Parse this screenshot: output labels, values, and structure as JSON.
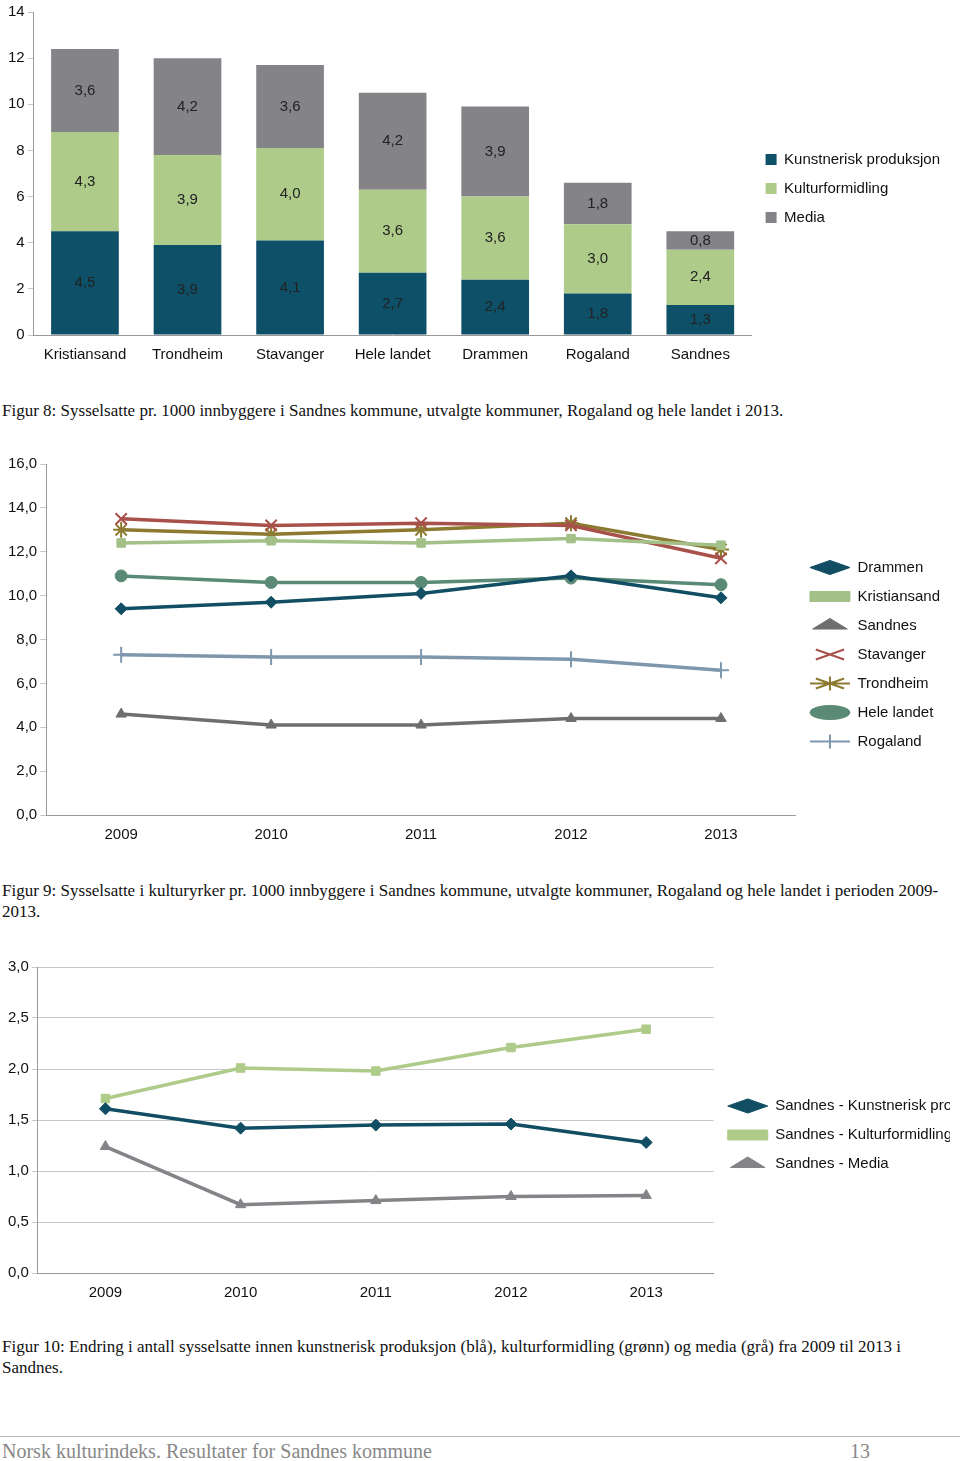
{
  "chart_data": [
    {
      "type": "bar",
      "stacked": true,
      "data_labels": true,
      "grid": false,
      "legend": "right",
      "categories": [
        "Kristiansand",
        "Trondheim",
        "Stavanger",
        "Hele landet",
        "Drammen",
        "Rogaland",
        "Sandnes"
      ],
      "ylim": [
        0,
        14
      ],
      "yticks": [
        0,
        2,
        4,
        6,
        8,
        10,
        12,
        14
      ],
      "series": [
        {
          "name": "Kunstnerisk produksjon",
          "color": "#0d5068",
          "values": [
            4.5,
            3.9,
            4.1,
            2.7,
            2.4,
            1.8,
            1.3
          ],
          "value_labels": [
            "4,5",
            "3,9",
            "4,1",
            "2,7",
            "2,4",
            "1,8",
            "1,3"
          ]
        },
        {
          "name": "Kulturformidling",
          "color": "#aecb8a",
          "values": [
            4.3,
            3.9,
            4.0,
            3.6,
            3.6,
            3.0,
            2.4
          ],
          "value_labels": [
            "4,3",
            "3,9",
            "4,0",
            "3,6",
            "3,6",
            "3,0",
            "2,4"
          ]
        },
        {
          "name": "Media",
          "color": "#848388",
          "values": [
            3.6,
            4.2,
            3.6,
            4.2,
            3.9,
            1.8,
            0.8
          ],
          "value_labels": [
            "3,6",
            "4,2",
            "3,6",
            "4,2",
            "3,9",
            "1,8",
            "0,8"
          ]
        }
      ]
    },
    {
      "type": "line",
      "grid": false,
      "legend": "right",
      "categories": [
        "2009",
        "2010",
        "2011",
        "2012",
        "2013"
      ],
      "ylim": [
        0,
        16
      ],
      "yticks": [
        {
          "value": 0,
          "label": "0,0"
        },
        {
          "value": 2,
          "label": "2,0"
        },
        {
          "value": 4,
          "label": "4,0"
        },
        {
          "value": 6,
          "label": "6,0"
        },
        {
          "value": 8,
          "label": "8,0"
        },
        {
          "value": 10,
          "label": "10,0"
        },
        {
          "value": 12,
          "label": "12,0"
        },
        {
          "value": 14,
          "label": "14,0"
        },
        {
          "value": 16,
          "label": "16,0"
        }
      ],
      "series": [
        {
          "name": "Drammen",
          "color": "#114e63",
          "marker": "diamond",
          "values": [
            9.4,
            9.7,
            10.1,
            10.9,
            9.9
          ]
        },
        {
          "name": "Kristiansand",
          "color": "#a2c088",
          "marker": "square",
          "values": [
            12.4,
            12.5,
            12.4,
            12.6,
            12.3
          ]
        },
        {
          "name": "Sandnes",
          "color": "#6e6e70",
          "marker": "triangle",
          "values": [
            4.6,
            4.1,
            4.1,
            4.4,
            4.4
          ]
        },
        {
          "name": "Stavanger",
          "color": "#a8504a",
          "marker": "x",
          "values": [
            13.5,
            13.2,
            13.3,
            13.2,
            11.7
          ]
        },
        {
          "name": "Trondheim",
          "color": "#8c7a30",
          "marker": "star",
          "values": [
            13.0,
            12.8,
            13.0,
            13.3,
            12.1
          ]
        },
        {
          "name": "Hele landet",
          "color": "#5a8a75",
          "marker": "circle",
          "values": [
            10.9,
            10.6,
            10.6,
            10.8,
            10.5
          ]
        },
        {
          "name": "Rogaland",
          "color": "#7e97ad",
          "marker": "plus",
          "values": [
            7.3,
            7.2,
            7.2,
            7.1,
            6.6
          ]
        }
      ]
    },
    {
      "type": "line",
      "grid": true,
      "legend": "right",
      "categories": [
        "2009",
        "2010",
        "2011",
        "2012",
        "2013"
      ],
      "ylim": [
        0,
        3
      ],
      "yticks": [
        {
          "value": 0,
          "label": "0,0"
        },
        {
          "value": 0.5,
          "label": "0,5"
        },
        {
          "value": 1,
          "label": "1,0"
        },
        {
          "value": 1.5,
          "label": "1,5"
        },
        {
          "value": 2,
          "label": "2,0"
        },
        {
          "value": 2.5,
          "label": "2,5"
        },
        {
          "value": 3,
          "label": "3,0"
        }
      ],
      "series": [
        {
          "name": "Sandnes - Kunstnerisk produksjon",
          "color": "#114e63",
          "marker": "diamond",
          "values": [
            1.61,
            1.42,
            1.45,
            1.46,
            1.28
          ]
        },
        {
          "name": "Sandnes - Kulturformidling",
          "color": "#aecb8a",
          "marker": "square",
          "values": [
            1.71,
            2.01,
            1.98,
            2.21,
            2.39
          ]
        },
        {
          "name": "Sandnes - Media",
          "color": "#848388",
          "marker": "triangle",
          "values": [
            1.24,
            0.67,
            0.71,
            0.75,
            0.76
          ]
        }
      ]
    }
  ],
  "captions": [
    "Figur 8: Sysselsatte pr. 1000 innbyggere i Sandnes kommune, utvalgte kommuner, Rogaland og hele landet  i 2013.",
    "Figur 9: Sysselsatte i kulturyrker pr. 1000 innbyggere i Sandnes kommune, utvalgte kommuner, Rogaland og hele landet i perioden 2009- 2013.",
    "Figur 10: Endring i antall sysselsatte innen kunstnerisk produksjon (blå), kulturformidling (grønn) og media (grå) fra 2009 til 2013 i Sandnes."
  ],
  "footer": {
    "text": "Norsk kulturindeks. Resultater for Sandnes kommune",
    "page": "13"
  }
}
